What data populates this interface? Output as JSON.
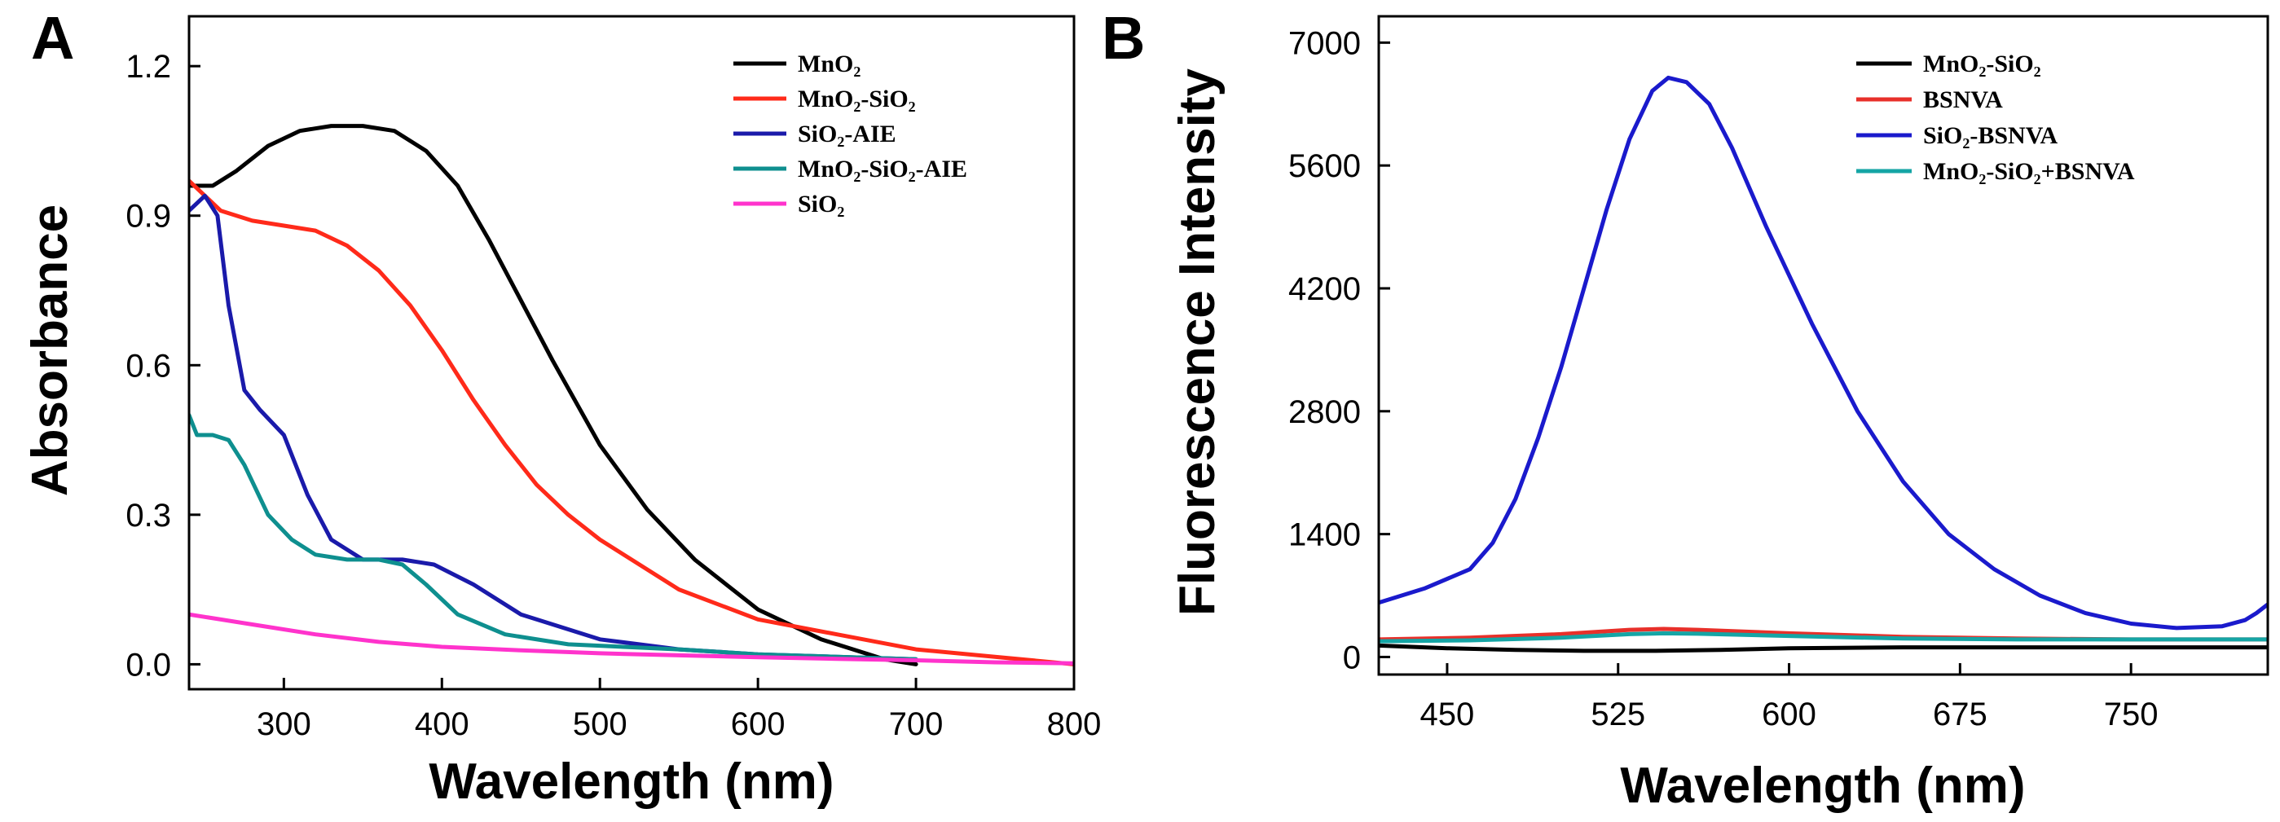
{
  "chart_data": [
    {
      "panel": "A",
      "type": "line",
      "xlabel": "Wavelength (nm)",
      "ylabel": "Absorbance",
      "xlim": [
        240,
        800
      ],
      "ylim": [
        -0.05,
        1.3
      ],
      "xticks": [
        300,
        400,
        500,
        600,
        700,
        800
      ],
      "yticks": [
        0.0,
        0.3,
        0.6,
        0.9,
        1.2
      ],
      "ytick_labels": [
        "0.0",
        "0.3",
        "0.6",
        "0.9",
        "1.2"
      ],
      "legend_position": "top-right",
      "series": [
        {
          "name": "MnO₂",
          "color": "#000000",
          "x": [
            240,
            255,
            270,
            290,
            310,
            330,
            350,
            370,
            390,
            410,
            430,
            450,
            470,
            500,
            530,
            560,
            600,
            640,
            680,
            700
          ],
          "y": [
            0.96,
            0.96,
            0.99,
            1.04,
            1.07,
            1.08,
            1.08,
            1.07,
            1.03,
            0.96,
            0.85,
            0.73,
            0.61,
            0.44,
            0.31,
            0.21,
            0.11,
            0.05,
            0.01,
            0.0
          ]
        },
        {
          "name": "MnO₂-SiO₂",
          "color": "#ff2a1a",
          "x": [
            240,
            260,
            280,
            300,
            320,
            340,
            360,
            380,
            400,
            420,
            440,
            460,
            480,
            500,
            550,
            600,
            650,
            700,
            750,
            800
          ],
          "y": [
            0.97,
            0.91,
            0.89,
            0.88,
            0.87,
            0.84,
            0.79,
            0.72,
            0.63,
            0.53,
            0.44,
            0.36,
            0.3,
            0.25,
            0.15,
            0.09,
            0.06,
            0.03,
            0.015,
            0.0
          ]
        },
        {
          "name": "SiO₂-AIE",
          "color": "#1a1aaa",
          "x": [
            240,
            250,
            258,
            265,
            275,
            285,
            300,
            315,
            330,
            350,
            375,
            395,
            420,
            450,
            500,
            550,
            600,
            650,
            700
          ],
          "y": [
            0.91,
            0.94,
            0.9,
            0.72,
            0.55,
            0.51,
            0.46,
            0.34,
            0.25,
            0.21,
            0.21,
            0.2,
            0.16,
            0.1,
            0.05,
            0.03,
            0.02,
            0.015,
            0.01
          ]
        },
        {
          "name": "MnO₂-SiO₂-AIE",
          "color": "#0e8f8f",
          "x": [
            240,
            245,
            255,
            265,
            275,
            290,
            305,
            320,
            340,
            360,
            375,
            390,
            410,
            440,
            480,
            550,
            600,
            650,
            700
          ],
          "y": [
            0.5,
            0.46,
            0.46,
            0.45,
            0.4,
            0.3,
            0.25,
            0.22,
            0.21,
            0.21,
            0.2,
            0.16,
            0.1,
            0.06,
            0.04,
            0.03,
            0.02,
            0.015,
            0.01
          ]
        },
        {
          "name": "SiO₂",
          "color": "#ff33cc",
          "x": [
            240,
            280,
            320,
            360,
            400,
            450,
            500,
            550,
            600,
            650,
            700,
            750,
            800
          ],
          "y": [
            0.1,
            0.08,
            0.06,
            0.045,
            0.035,
            0.028,
            0.022,
            0.018,
            0.014,
            0.011,
            0.008,
            0.004,
            0.002
          ]
        }
      ]
    },
    {
      "panel": "B",
      "type": "line",
      "xlabel": "Wavelength (nm)",
      "ylabel": "Fluorescence Intensity",
      "xlim": [
        420,
        810
      ],
      "ylim": [
        -200,
        7300
      ],
      "xticks": [
        450,
        525,
        600,
        675,
        750
      ],
      "yticks": [
        0,
        1400,
        2800,
        4200,
        5600,
        7000
      ],
      "ytick_labels": [
        "0",
        "1400",
        "2800",
        "4200",
        "5600",
        "7000"
      ],
      "legend_position": "top-right",
      "series": [
        {
          "name": "MnO₂-SiO₂",
          "color": "#000000",
          "x": [
            420,
            450,
            480,
            510,
            540,
            570,
            600,
            650,
            700,
            750,
            810
          ],
          "y": [
            130,
            100,
            80,
            70,
            70,
            80,
            100,
            110,
            110,
            110,
            110
          ]
        },
        {
          "name": "BSNVA",
          "color": "#e8302a",
          "x": [
            420,
            460,
            500,
            530,
            545,
            560,
            600,
            650,
            700,
            750,
            810
          ],
          "y": [
            200,
            220,
            260,
            310,
            320,
            310,
            270,
            230,
            210,
            200,
            200
          ]
        },
        {
          "name": "SiO₂-BSNVA",
          "color": "#1a1acc",
          "x": [
            420,
            440,
            460,
            470,
            480,
            490,
            500,
            510,
            520,
            530,
            540,
            547,
            555,
            565,
            575,
            590,
            610,
            630,
            650,
            670,
            690,
            710,
            730,
            750,
            770,
            790,
            800,
            805,
            810
          ],
          "y": [
            620,
            780,
            1000,
            1300,
            1800,
            2500,
            3300,
            4200,
            5100,
            5900,
            6450,
            6600,
            6550,
            6300,
            5800,
            4900,
            3800,
            2800,
            2000,
            1400,
            1000,
            700,
            500,
            380,
            330,
            350,
            420,
            500,
            600
          ]
        },
        {
          "name": "MnO₂-SiO₂+BSNVA",
          "color": "#15a5a5",
          "x": [
            420,
            460,
            500,
            530,
            545,
            560,
            600,
            650,
            700,
            750,
            810
          ],
          "y": [
            180,
            190,
            220,
            260,
            270,
            265,
            240,
            210,
            200,
            200,
            200
          ]
        }
      ]
    }
  ]
}
